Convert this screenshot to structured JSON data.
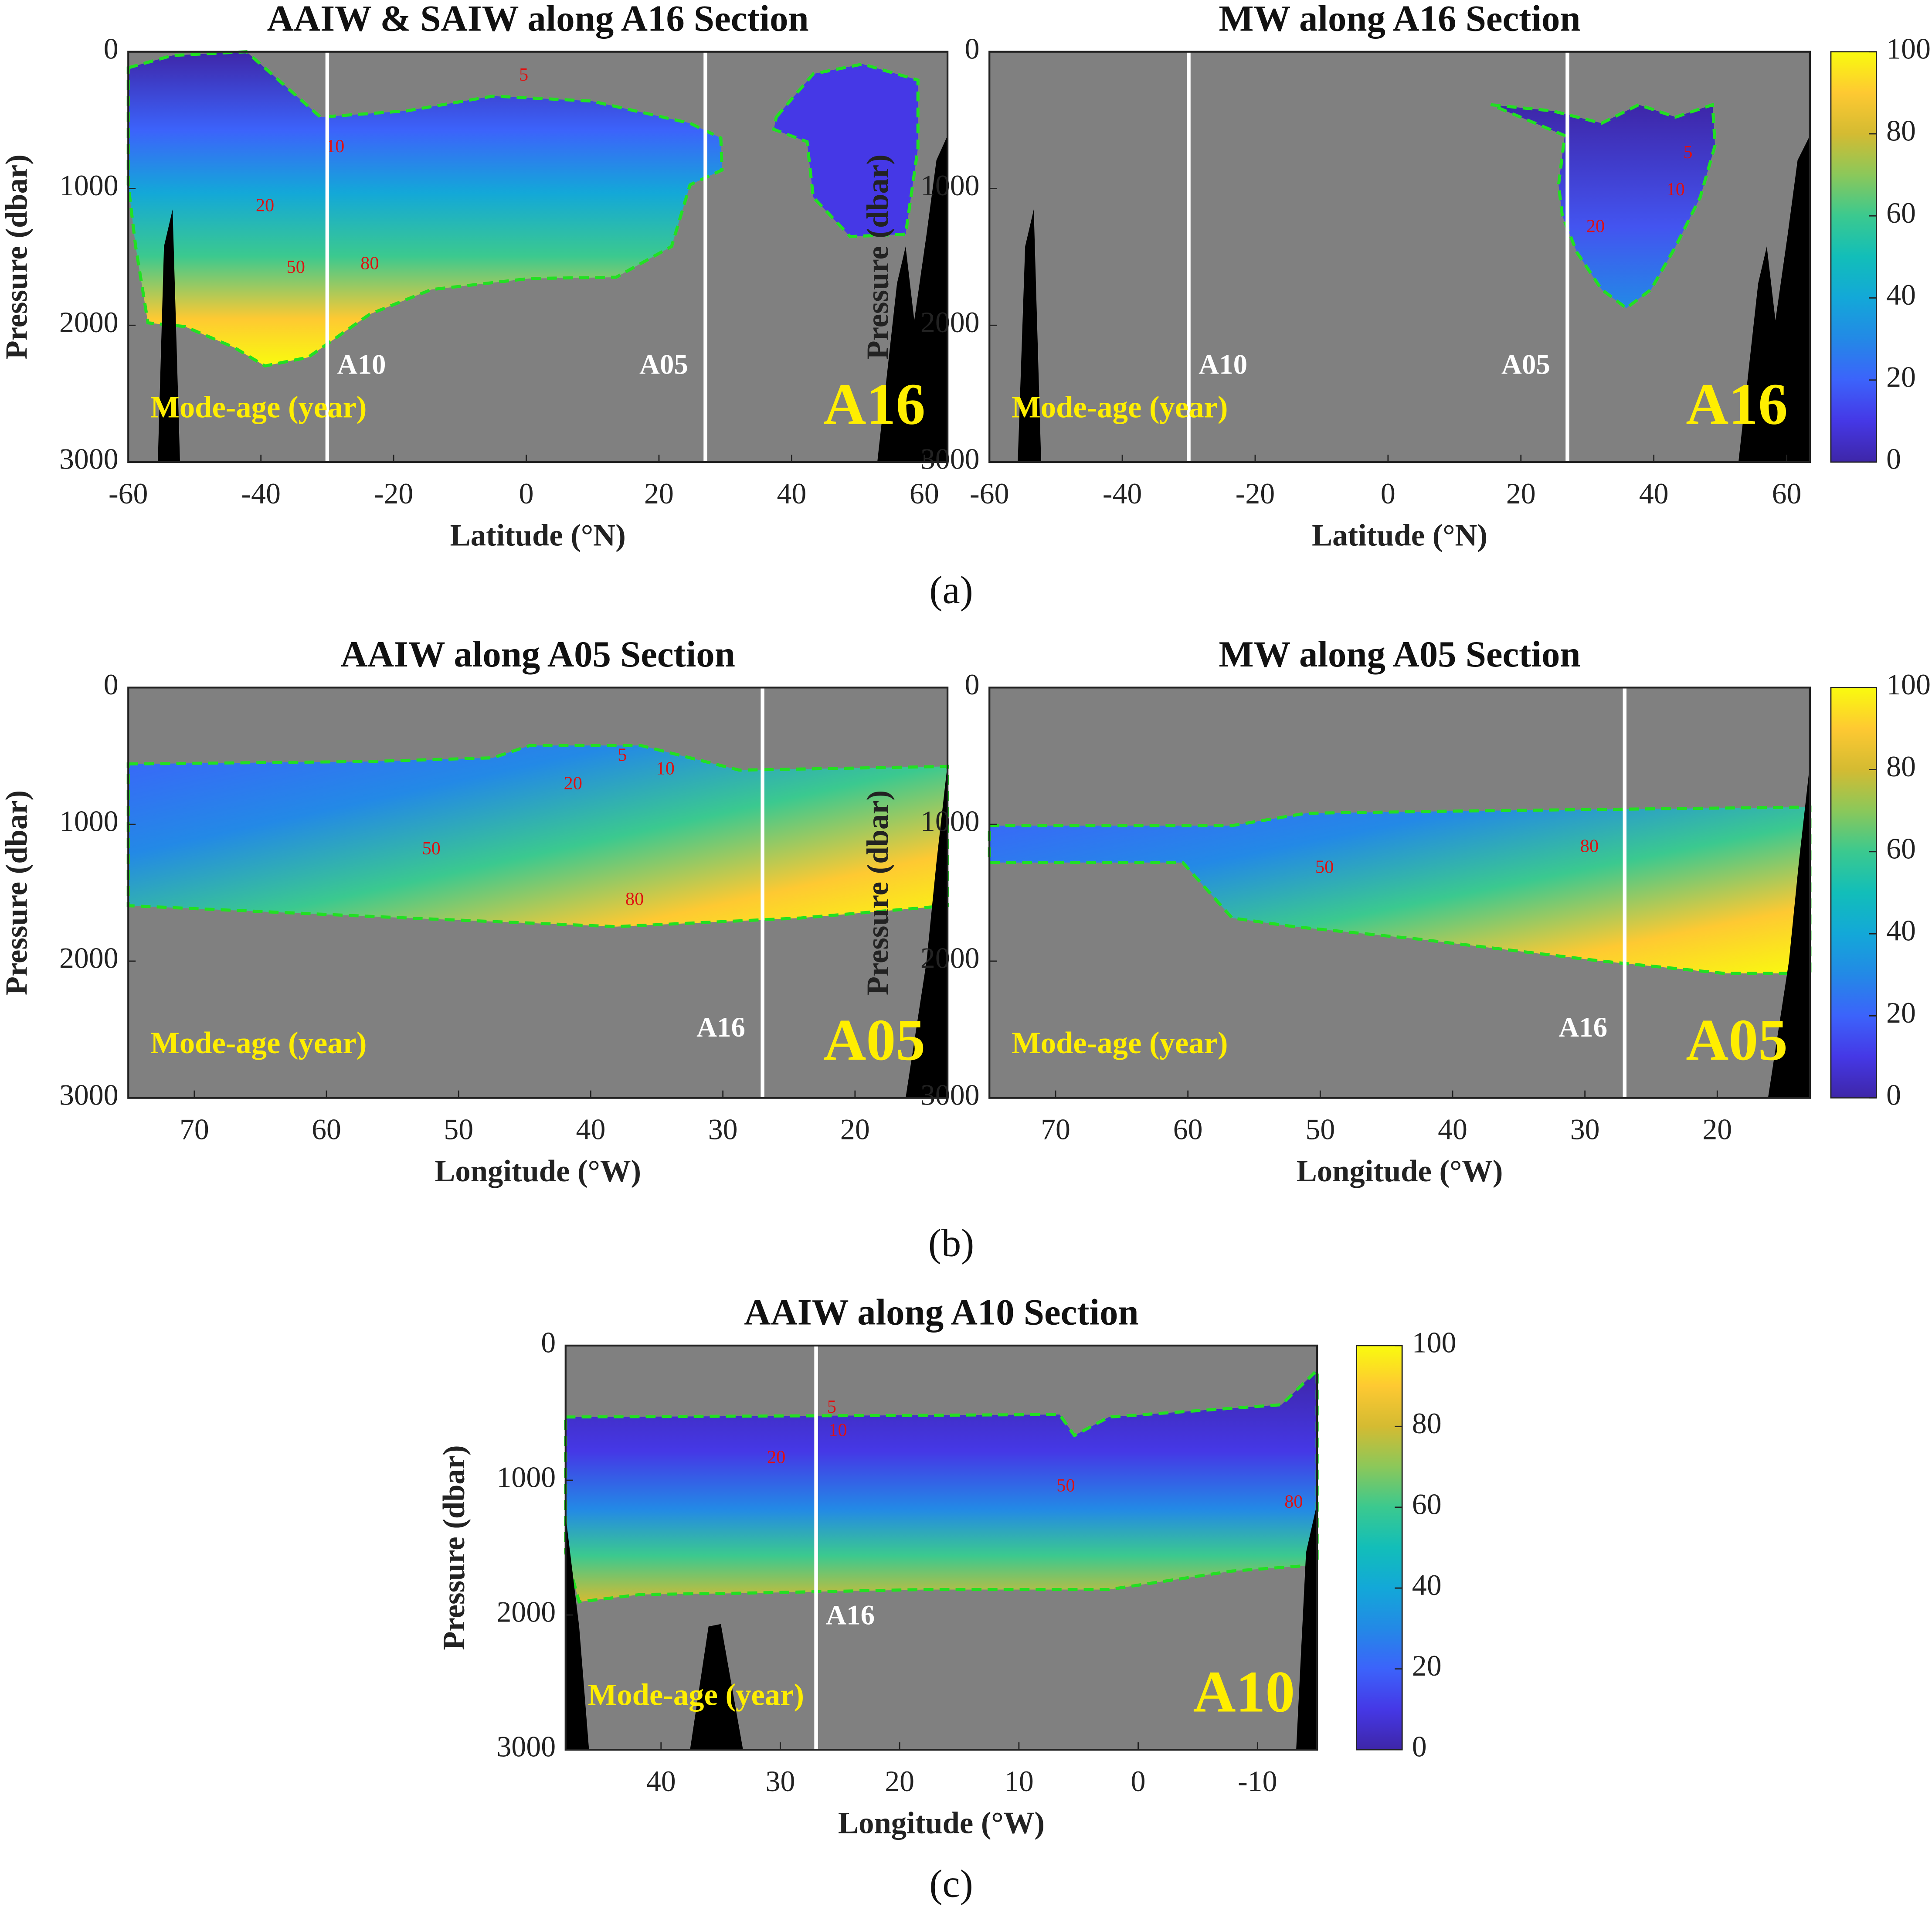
{
  "chart_data": [
    {
      "type": "heatmap",
      "title": "AAIW & SAIW along A16 Section",
      "x_label": "Latitude (°N)",
      "y_label": "Pressure (dbar)",
      "xlim": [
        -60,
        63.5
      ],
      "xticks": [
        -60,
        -40,
        -20,
        0,
        20,
        40,
        60
      ],
      "ylim": [
        0,
        3000
      ],
      "yticks": [
        0,
        1000,
        2000,
        3000
      ],
      "y_inverted": true,
      "reference_lines": [
        {
          "value": -30,
          "label": "A10"
        },
        {
          "value": 27,
          "label": "A05"
        }
      ],
      "section": "A16",
      "annotation": "Mode-age (year)",
      "contour_levels": [
        5,
        10,
        20,
        50,
        80
      ]
    },
    {
      "type": "heatmap",
      "title": "MW along A16 Section",
      "x_label": "Latitude (°N)",
      "y_label": "Pressure (dbar)",
      "xlim": [
        -60,
        63.5
      ],
      "xticks": [
        -60,
        -40,
        -20,
        0,
        20,
        40,
        60
      ],
      "ylim": [
        0,
        3000
      ],
      "yticks": [
        0,
        1000,
        2000,
        3000
      ],
      "y_inverted": true,
      "reference_lines": [
        {
          "value": -30,
          "label": "A10"
        },
        {
          "value": 27,
          "label": "A05"
        }
      ],
      "section": "A16",
      "annotation": "Mode-age (year)",
      "contour_levels": [
        5,
        10,
        20
      ],
      "colorbar": {
        "clim": [
          0,
          100
        ],
        "ticks": [
          0,
          20,
          40,
          60,
          80,
          100
        ],
        "colormap": "parula"
      }
    },
    {
      "type": "heatmap",
      "title": "AAIW along A05 Section",
      "x_label": "Longitude (°W)",
      "y_label": "Pressure (dbar)",
      "xlim": [
        75,
        13
      ],
      "xticks": [
        70,
        60,
        50,
        40,
        30,
        20
      ],
      "ylim": [
        0,
        3000
      ],
      "yticks": [
        0,
        1000,
        2000,
        3000
      ],
      "y_inverted": true,
      "reference_lines": [
        {
          "value": 27,
          "label": "A16"
        }
      ],
      "section": "A05",
      "annotation": "Mode-age (year)",
      "contour_levels": [
        5,
        10,
        20,
        50,
        80
      ]
    },
    {
      "type": "heatmap",
      "title": "MW along A05 Section",
      "x_label": "Longitude (°W)",
      "y_label": "Pressure (dbar)",
      "xlim": [
        75,
        13
      ],
      "xticks": [
        70,
        60,
        50,
        40,
        30,
        20
      ],
      "ylim": [
        0,
        3000
      ],
      "yticks": [
        0,
        1000,
        2000,
        3000
      ],
      "y_inverted": true,
      "reference_lines": [
        {
          "value": 27,
          "label": "A16"
        }
      ],
      "section": "A05",
      "annotation": "Mode-age (year)",
      "contour_levels": [
        50,
        80
      ],
      "colorbar": {
        "clim": [
          0,
          100
        ],
        "ticks": [
          0,
          20,
          40,
          60,
          80,
          100
        ],
        "colormap": "parula"
      }
    },
    {
      "type": "heatmap",
      "title": "AAIW along A10 Section",
      "x_label": "Longitude (°W)",
      "y_label": "Pressure (dbar)",
      "xlim": [
        48,
        -15
      ],
      "xticks": [
        40,
        30,
        20,
        10,
        0,
        -10
      ],
      "ylim": [
        0,
        3000
      ],
      "yticks": [
        0,
        1000,
        2000,
        3000
      ],
      "y_inverted": true,
      "reference_lines": [
        {
          "value": 27,
          "label": "A16"
        }
      ],
      "section": "A10",
      "annotation": "Mode-age (year)",
      "contour_levels": [
        5,
        10,
        20,
        50,
        80
      ],
      "colorbar": {
        "clim": [
          0,
          100
        ],
        "ticks": [
          0,
          20,
          40,
          60,
          80,
          100
        ],
        "colormap": "parula"
      }
    }
  ],
  "panel_labels": [
    "(a)",
    "(b)",
    "(c)"
  ]
}
